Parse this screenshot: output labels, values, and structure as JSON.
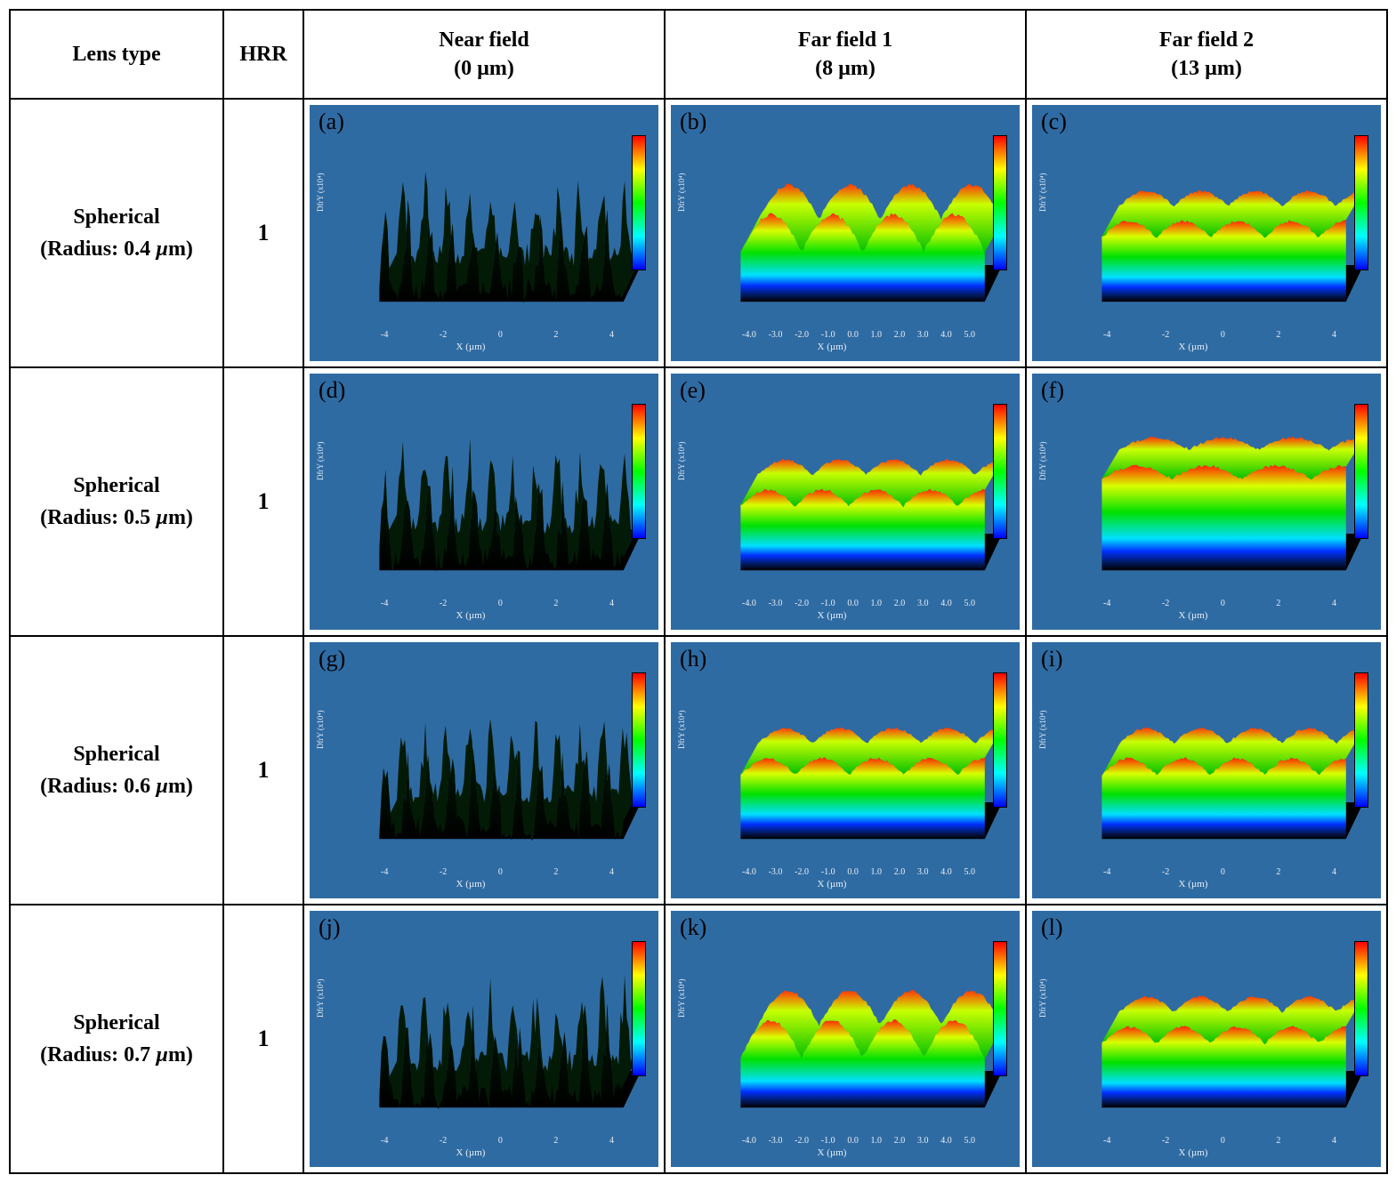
{
  "columns": {
    "lens": "Lens type",
    "hrr": "HRR",
    "near": {
      "title": "Near field",
      "sub": "(0 µm)"
    },
    "far1": {
      "title": "Far field 1",
      "sub": "(8 µm)"
    },
    "far2": {
      "title": "Far field 2",
      "sub": "(13 µm)"
    }
  },
  "lens_label_prefix": "Spherical",
  "lens_label_radius_word": "Radius:",
  "unit": "µm",
  "rows": [
    {
      "radius": "0.4",
      "hrr": "1",
      "labels": [
        "(a)",
        "(b)",
        "(c)"
      ],
      "styles": [
        "near",
        "far-peaks",
        "far-flat"
      ]
    },
    {
      "radius": "0.5",
      "hrr": "1",
      "labels": [
        "(d)",
        "(e)",
        "(f)"
      ],
      "styles": [
        "near",
        "far-flat",
        "far-tall"
      ]
    },
    {
      "radius": "0.6",
      "hrr": "1",
      "labels": [
        "(g)",
        "(h)",
        "(i)"
      ],
      "styles": [
        "near",
        "far-flat",
        "far-flat"
      ]
    },
    {
      "radius": "0.7",
      "hrr": "1",
      "labels": [
        "(j)",
        "(k)",
        "(l)"
      ],
      "styles": [
        "near",
        "far-peaks",
        "far-flat"
      ]
    }
  ],
  "panel": {
    "bg": "#2f6ba3",
    "plate": "#000000",
    "axis_label_x": "X (µm)",
    "axis_label_y": "DfrY (x10⁴)",
    "xticks_narrow": [
      "-4",
      "-2",
      "0",
      "2",
      "4"
    ],
    "xticks_wide": [
      "-4.0",
      "-3.0",
      "-2.0",
      "-1.0",
      "0.0",
      "1.0",
      "2.0",
      "3.0",
      "4.0",
      "5.0"
    ],
    "colorscale": [
      "#ff0000",
      "#ffff00",
      "#00ff00",
      "#00ffff",
      "#0000ff"
    ]
  },
  "surface": {
    "near": {
      "baseH": 40,
      "amp": 70,
      "freq": 22,
      "noise": 28,
      "topFrom": "#00330a",
      "topTo": "#000000",
      "edge": "spiky"
    },
    "far-peaks": {
      "baseH": 55,
      "amp": 40,
      "freq": 8,
      "noise": 4,
      "gradient": true,
      "edge": "smooth"
    },
    "far-flat": {
      "baseH": 70,
      "amp": 18,
      "freq": 9,
      "noise": 3,
      "gradient": true,
      "edge": "smooth"
    },
    "far-tall": {
      "baseH": 100,
      "amp": 14,
      "freq": 7,
      "noise": 3,
      "gradient": true,
      "edge": "smooth"
    }
  }
}
